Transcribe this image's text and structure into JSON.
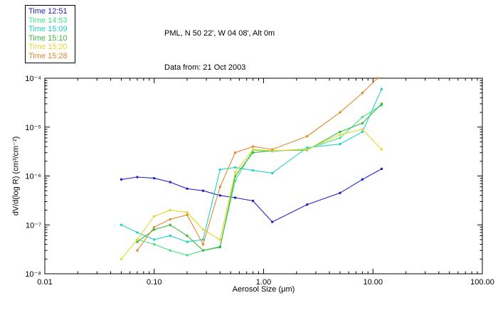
{
  "chart_data": {
    "type": "line",
    "title": "PML, N 50 22', W 04 08', Alt 0m",
    "subtitle": "Data from: 21 Oct 2003",
    "xlabel": "Aerosol Size (μm)",
    "ylabel": "dV/d(log R) (cm³/cm⁻²)",
    "xscale": "log",
    "yscale": "log",
    "xlim": [
      0.01,
      100
    ],
    "ylim": [
      1e-08,
      0.0001
    ],
    "grid": false,
    "legend_position": "top-left-outside",
    "x_tick_labels": [
      "0.01",
      "0.10",
      "1.00",
      "10.00",
      "100.00"
    ],
    "y_tick_labels": [
      "10⁻⁸",
      "10⁻⁷",
      "10⁻⁶",
      "10⁻⁵",
      "10⁻⁴"
    ],
    "series": [
      {
        "name": "Time 12:51",
        "color": "#2222cc",
        "x": [
          0.05,
          0.07,
          0.1,
          0.14,
          0.2,
          0.28,
          0.4,
          0.55,
          0.8,
          1.2,
          2.5,
          5.0,
          8.0,
          12.0
        ],
        "y": [
          8.5e-07,
          9.5e-07,
          9e-07,
          7.5e-07,
          5.5e-07,
          5e-07,
          4e-07,
          3.6e-07,
          3.1e-07,
          1.15e-07,
          2.6e-07,
          4.5e-07,
          8.5e-07,
          1.4e-06
        ]
      },
      {
        "name": "Time 14:53",
        "color": "#44e584",
        "x": [
          0.07,
          0.1,
          0.14,
          0.2,
          0.28,
          0.4,
          0.55,
          0.8,
          1.2,
          2.5,
          5.0,
          8.0,
          12.0
        ],
        "y": [
          5e-08,
          4e-08,
          3e-08,
          2.4e-08,
          3e-08,
          3.6e-08,
          8e-07,
          3.4e-06,
          3.2e-06,
          3.6e-06,
          6e-06,
          1.6e-05,
          2.8e-05
        ]
      },
      {
        "name": "Time 15:09",
        "color": "#21d2c4",
        "x": [
          0.05,
          0.07,
          0.1,
          0.14,
          0.2,
          0.28,
          0.4,
          0.55,
          0.8,
          1.2,
          2.5,
          5.0,
          8.0,
          12.0
        ],
        "y": [
          1e-07,
          7e-08,
          5e-08,
          6e-08,
          4.5e-08,
          5e-08,
          1.35e-06,
          1.5e-06,
          1.3e-06,
          1.15e-06,
          3.8e-06,
          4.5e-06,
          8e-06,
          6e-05
        ]
      },
      {
        "name": "Time 15:10",
        "color": "#3cb83c",
        "x": [
          0.07,
          0.1,
          0.14,
          0.2,
          0.28,
          0.4,
          0.55,
          0.8,
          1.2,
          2.5,
          5.0,
          8.0,
          12.0
        ],
        "y": [
          4.5e-08,
          8e-08,
          1e-07,
          6e-08,
          3e-08,
          3.5e-08,
          1e-06,
          3e-06,
          3.3e-06,
          3.4e-06,
          8e-06,
          1.2e-05,
          3e-05
        ]
      },
      {
        "name": "Time 15:20",
        "color": "#e3d92e",
        "x": [
          0.05,
          0.07,
          0.1,
          0.14,
          0.2,
          0.28,
          0.4,
          0.55,
          0.8,
          1.2,
          2.5,
          5.0,
          8.0,
          12.0
        ],
        "y": [
          2e-08,
          5e-08,
          1.5e-07,
          2e-07,
          1.8e-07,
          8e-08,
          5e-08,
          1.2e-06,
          3.5e-06,
          3.3e-06,
          3.5e-06,
          7e-06,
          9e-06,
          3.5e-06
        ]
      },
      {
        "name": "Time 15:28",
        "color": "#e08a2c",
        "x": [
          0.07,
          0.1,
          0.14,
          0.2,
          0.28,
          0.4,
          0.55,
          0.8,
          1.2,
          2.5,
          5.0,
          8.0,
          11.0
        ],
        "y": [
          3e-08,
          9e-08,
          1.3e-07,
          1.6e-07,
          4e-08,
          6e-07,
          3e-06,
          4e-06,
          3.5e-06,
          6.5e-06,
          2e-05,
          5e-05,
          0.0001
        ]
      }
    ]
  }
}
